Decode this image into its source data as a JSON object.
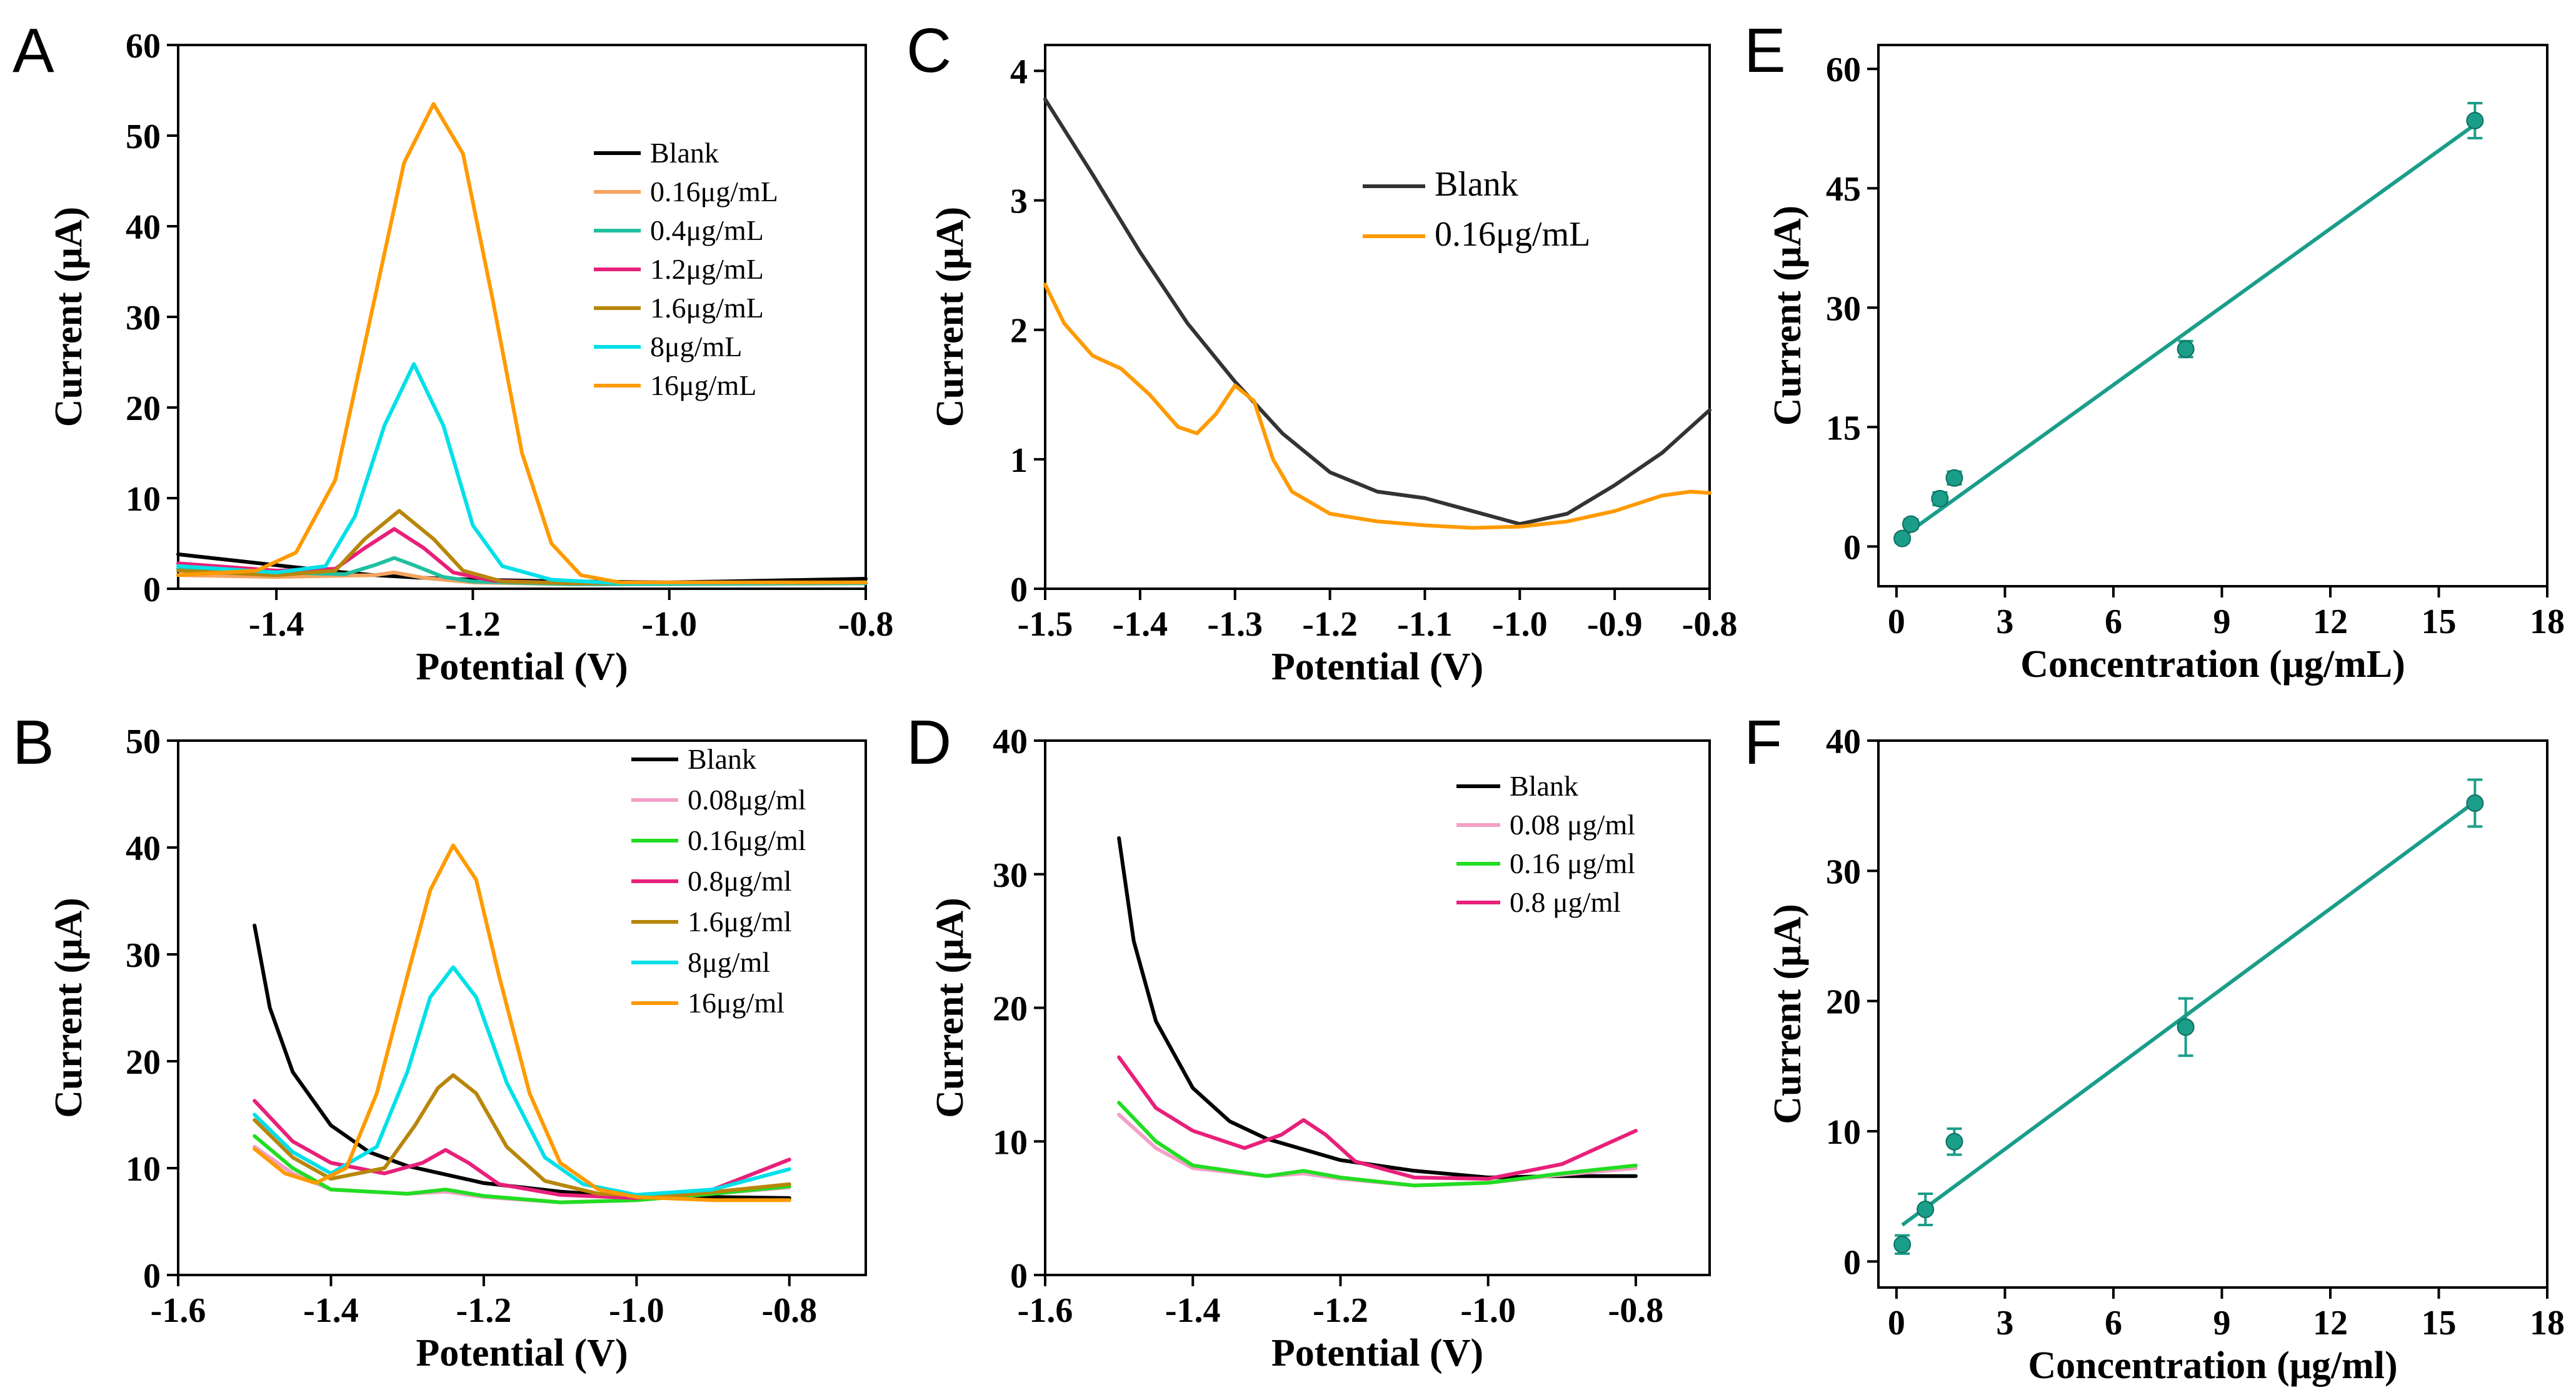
{
  "figure": {
    "panel_letters": [
      "A",
      "B",
      "C",
      "D",
      "E",
      "F"
    ]
  },
  "chart_data": [
    {
      "panel": "A",
      "type": "line",
      "title": "",
      "xlabel": "Potential (V)",
      "ylabel": "Current (μA)",
      "xlim": [
        -1.5,
        -0.8
      ],
      "ylim": [
        0,
        60
      ],
      "xticks": [
        -1.4,
        -1.2,
        -1.0,
        -0.8
      ],
      "xtick_labels": [
        "-1.4",
        "-1.2",
        "-1.0",
        "-0.8"
      ],
      "yticks": [
        0,
        10,
        20,
        30,
        40,
        50,
        60
      ],
      "ytick_labels": [
        "0",
        "10",
        "20",
        "30",
        "40",
        "50",
        "60"
      ],
      "legend_position": "top-right",
      "series": [
        {
          "name": "Blank",
          "color": "#000000",
          "x": [
            -1.5,
            -1.45,
            -1.4,
            -1.35,
            -1.3,
            -1.25,
            -1.2,
            -1.1,
            -1.0,
            -0.9,
            -0.8
          ],
          "y": [
            3.8,
            3.2,
            2.6,
            2.0,
            1.5,
            1.2,
            1.0,
            0.8,
            0.7,
            0.9,
            1.1
          ]
        },
        {
          "name": "0.16μg/mL",
          "color": "#f4a460",
          "x": [
            -1.5,
            -1.4,
            -1.3,
            -1.28,
            -1.25,
            -1.2,
            -1.1,
            -1.0,
            -0.8
          ],
          "y": [
            1.5,
            1.3,
            1.5,
            1.8,
            1.2,
            0.7,
            0.5,
            0.5,
            0.6
          ]
        },
        {
          "name": "0.4μg/mL",
          "color": "#20c0a0",
          "x": [
            -1.5,
            -1.4,
            -1.33,
            -1.3,
            -1.28,
            -1.26,
            -1.23,
            -1.2,
            -1.1,
            -0.8
          ],
          "y": [
            2.2,
            1.8,
            1.6,
            2.6,
            3.4,
            2.6,
            1.3,
            0.8,
            0.5,
            0.6
          ]
        },
        {
          "name": "1.2μg/mL",
          "color": "#e8207a",
          "x": [
            -1.5,
            -1.4,
            -1.34,
            -1.31,
            -1.28,
            -1.25,
            -1.22,
            -1.18,
            -1.1,
            -0.8
          ],
          "y": [
            2.8,
            2.0,
            2.2,
            4.5,
            6.6,
            4.5,
            1.8,
            0.9,
            0.6,
            0.7
          ]
        },
        {
          "name": "1.6μg/mL",
          "color": "#b8860b",
          "x": [
            -1.5,
            -1.4,
            -1.34,
            -1.31,
            -1.275,
            -1.24,
            -1.21,
            -1.17,
            -1.1,
            -0.8
          ],
          "y": [
            2.0,
            1.5,
            2.0,
            5.5,
            8.6,
            5.5,
            2.0,
            0.8,
            0.6,
            0.7
          ]
        },
        {
          "name": "8μg/mL",
          "color": "#00e0e8",
          "x": [
            -1.5,
            -1.4,
            -1.35,
            -1.32,
            -1.29,
            -1.26,
            -1.23,
            -1.2,
            -1.17,
            -1.12,
            -1.05,
            -0.8
          ],
          "y": [
            2.5,
            1.8,
            2.5,
            8.0,
            18.0,
            24.8,
            18.0,
            7.0,
            2.5,
            1.0,
            0.6,
            0.7
          ]
        },
        {
          "name": "16μg/mL",
          "color": "#ff9a00",
          "x": [
            -1.5,
            -1.42,
            -1.38,
            -1.34,
            -1.3,
            -1.27,
            -1.24,
            -1.21,
            -1.18,
            -1.15,
            -1.12,
            -1.09,
            -1.05,
            -0.8
          ],
          "y": [
            1.5,
            2.0,
            4.0,
            12.0,
            32.0,
            47.0,
            53.5,
            48.0,
            32.0,
            15.0,
            5.0,
            1.5,
            0.7,
            0.7
          ]
        }
      ]
    },
    {
      "panel": "B",
      "type": "line",
      "title": "",
      "xlabel": "Potential (V)",
      "ylabel": "Current (μA)",
      "xlim": [
        -1.6,
        -0.7
      ],
      "ylim": [
        0,
        50
      ],
      "xticks": [
        -1.6,
        -1.4,
        -1.2,
        -1.0,
        -0.8
      ],
      "xtick_labels": [
        "-1.6",
        "-1.4",
        "-1.2",
        "-1.0",
        "-0.8"
      ],
      "yticks": [
        0,
        10,
        20,
        30,
        40,
        50
      ],
      "ytick_labels": [
        "0",
        "10",
        "20",
        "30",
        "40",
        "50"
      ],
      "legend_position": "top-right",
      "series": [
        {
          "name": "Blank",
          "color": "#000000",
          "x": [
            -1.5,
            -1.48,
            -1.45,
            -1.4,
            -1.35,
            -1.3,
            -1.2,
            -1.1,
            -1.0,
            -0.9,
            -0.8
          ],
          "y": [
            32.7,
            25.0,
            19.0,
            14.0,
            11.5,
            10.2,
            8.6,
            7.8,
            7.3,
            7.3,
            7.2
          ]
        },
        {
          "name": "0.08μg/ml",
          "color": "#f4a0c8",
          "x": [
            -1.5,
            -1.45,
            -1.4,
            -1.3,
            -1.25,
            -1.2,
            -1.1,
            -1.0,
            -0.9,
            -0.8
          ],
          "y": [
            12.0,
            9.5,
            8.0,
            7.6,
            7.8,
            7.3,
            6.8,
            7.0,
            7.6,
            8.2
          ]
        },
        {
          "name": "0.16μg/ml",
          "color": "#22dd22",
          "x": [
            -1.5,
            -1.45,
            -1.4,
            -1.3,
            -1.25,
            -1.2,
            -1.1,
            -1.0,
            -0.9,
            -0.8
          ],
          "y": [
            13.0,
            10.0,
            8.0,
            7.6,
            8.0,
            7.4,
            6.8,
            7.0,
            7.6,
            8.3
          ]
        },
        {
          "name": "0.8μg/ml",
          "color": "#e8207a",
          "x": [
            -1.5,
            -1.45,
            -1.4,
            -1.33,
            -1.28,
            -1.25,
            -1.22,
            -1.18,
            -1.1,
            -1.0,
            -0.9,
            -0.8
          ],
          "y": [
            16.3,
            12.5,
            10.5,
            9.5,
            10.5,
            11.7,
            10.5,
            8.5,
            7.5,
            7.2,
            8.0,
            10.8
          ]
        },
        {
          "name": "1.6μg/ml",
          "color": "#b8860b",
          "x": [
            -1.5,
            -1.45,
            -1.4,
            -1.33,
            -1.29,
            -1.26,
            -1.24,
            -1.21,
            -1.17,
            -1.12,
            -1.05,
            -0.95,
            -0.8
          ],
          "y": [
            14.5,
            11.0,
            9.0,
            10.0,
            14.0,
            17.5,
            18.7,
            17.0,
            12.0,
            8.8,
            7.6,
            7.4,
            8.5
          ]
        },
        {
          "name": "8μg/ml",
          "color": "#00e0e8",
          "x": [
            -1.5,
            -1.45,
            -1.4,
            -1.34,
            -1.3,
            -1.27,
            -1.24,
            -1.21,
            -1.17,
            -1.12,
            -1.07,
            -1.0,
            -0.9,
            -0.8
          ],
          "y": [
            15.0,
            11.5,
            9.5,
            12.0,
            19.0,
            26.0,
            28.8,
            26.0,
            18.0,
            11.0,
            8.5,
            7.5,
            8.0,
            9.9
          ]
        },
        {
          "name": "16μg/ml",
          "color": "#ff9a00",
          "x": [
            -1.5,
            -1.46,
            -1.42,
            -1.38,
            -1.34,
            -1.3,
            -1.27,
            -1.24,
            -1.21,
            -1.18,
            -1.14,
            -1.1,
            -1.05,
            -1.0,
            -0.9,
            -0.8
          ],
          "y": [
            11.8,
            9.5,
            8.6,
            10.0,
            17.0,
            28.0,
            36.0,
            40.2,
            37.0,
            28.0,
            17.0,
            10.5,
            8.0,
            7.3,
            7.0,
            7.0
          ]
        }
      ]
    },
    {
      "panel": "C",
      "type": "line",
      "title": "",
      "xlabel": "Potential (V)",
      "ylabel": "Current (μA)",
      "xlim": [
        -1.5,
        -0.8
      ],
      "ylim": [
        0,
        4.2
      ],
      "xticks": [
        -1.5,
        -1.4,
        -1.3,
        -1.2,
        -1.1,
        -1.0,
        -0.9,
        -0.8
      ],
      "xtick_labels": [
        "-1.5",
        "-1.4",
        "-1.3",
        "-1.2",
        "-1.1",
        "-1.0",
        "-0.9",
        "-0.8"
      ],
      "yticks": [
        0,
        1,
        2,
        3,
        4
      ],
      "ytick_labels": [
        "0",
        "1",
        "2",
        "3",
        "4"
      ],
      "legend_position": "top-right",
      "series": [
        {
          "name": "Blank",
          "color": "#333333",
          "x": [
            -1.5,
            -1.45,
            -1.4,
            -1.35,
            -1.3,
            -1.25,
            -1.2,
            -1.15,
            -1.1,
            -1.05,
            -1.0,
            -0.95,
            -0.9,
            -0.85,
            -0.8
          ],
          "y": [
            3.78,
            3.2,
            2.6,
            2.05,
            1.6,
            1.2,
            0.9,
            0.75,
            0.7,
            0.6,
            0.5,
            0.58,
            0.8,
            1.05,
            1.38
          ]
        },
        {
          "name": "0.16μg/mL",
          "color": "#ff9a00",
          "x": [
            -1.5,
            -1.48,
            -1.45,
            -1.42,
            -1.39,
            -1.36,
            -1.34,
            -1.32,
            -1.3,
            -1.28,
            -1.26,
            -1.24,
            -1.2,
            -1.15,
            -1.1,
            -1.05,
            -1.0,
            -0.95,
            -0.9,
            -0.85,
            -0.82,
            -0.8
          ],
          "y": [
            2.35,
            2.05,
            1.8,
            1.7,
            1.5,
            1.25,
            1.2,
            1.35,
            1.57,
            1.45,
            1.0,
            0.75,
            0.58,
            0.52,
            0.49,
            0.47,
            0.48,
            0.52,
            0.6,
            0.72,
            0.75,
            0.74
          ]
        }
      ]
    },
    {
      "panel": "D",
      "type": "line",
      "title": "",
      "xlabel": "Potential (V)",
      "ylabel": "Current (μA)",
      "xlim": [
        -1.6,
        -0.7
      ],
      "ylim": [
        0,
        40
      ],
      "xticks": [
        -1.6,
        -1.4,
        -1.2,
        -1.0,
        -0.8
      ],
      "xtick_labels": [
        "-1.6",
        "-1.4",
        "-1.2",
        "-1.0",
        "-0.8"
      ],
      "yticks": [
        0,
        10,
        20,
        30,
        40
      ],
      "ytick_labels": [
        "0",
        "10",
        "20",
        "30",
        "40"
      ],
      "legend_position": "top-right",
      "series": [
        {
          "name": "Blank",
          "color": "#000000",
          "x": [
            -1.5,
            -1.48,
            -1.45,
            -1.4,
            -1.35,
            -1.3,
            -1.2,
            -1.1,
            -1.0,
            -0.9,
            -0.8
          ],
          "y": [
            32.7,
            25.0,
            19.0,
            14.0,
            11.5,
            10.2,
            8.6,
            7.8,
            7.3,
            7.4,
            7.4
          ]
        },
        {
          "name": "0.08 μg/ml",
          "color": "#f4a0c8",
          "x": [
            -1.5,
            -1.45,
            -1.4,
            -1.3,
            -1.25,
            -1.2,
            -1.1,
            -1.0,
            -0.9,
            -0.8
          ],
          "y": [
            12.0,
            9.5,
            8.0,
            7.4,
            7.6,
            7.2,
            6.7,
            6.9,
            7.5,
            8.0
          ]
        },
        {
          "name": "0.16 μg/ml",
          "color": "#22dd22",
          "x": [
            -1.5,
            -1.45,
            -1.4,
            -1.3,
            -1.25,
            -1.2,
            -1.1,
            -1.0,
            -0.9,
            -0.8
          ],
          "y": [
            12.9,
            10.0,
            8.2,
            7.4,
            7.8,
            7.3,
            6.7,
            6.9,
            7.6,
            8.2
          ]
        },
        {
          "name": "0.8 μg/ml",
          "color": "#e8207a",
          "x": [
            -1.5,
            -1.45,
            -1.4,
            -1.33,
            -1.28,
            -1.25,
            -1.22,
            -1.18,
            -1.1,
            -1.0,
            -0.9,
            -0.8
          ],
          "y": [
            16.3,
            12.5,
            10.8,
            9.5,
            10.5,
            11.6,
            10.5,
            8.5,
            7.3,
            7.2,
            8.3,
            10.8
          ]
        }
      ]
    },
    {
      "panel": "E",
      "type": "scatter",
      "title": "",
      "xlabel": "Concentration (μg/mL)",
      "ylabel": "Current (μA)",
      "xlim": [
        -0.5,
        18
      ],
      "ylim": [
        -5,
        63
      ],
      "xticks": [
        0,
        3,
        6,
        9,
        12,
        15,
        18
      ],
      "xtick_labels": [
        "0",
        "3",
        "6",
        "9",
        "12",
        "15",
        "18"
      ],
      "yticks": [
        0,
        15,
        30,
        45,
        60
      ],
      "ytick_labels": [
        "0",
        "15",
        "30",
        "45",
        "60"
      ],
      "color": "#1a9e8a",
      "points": [
        {
          "x": 0.16,
          "y": 1.0,
          "err": 0.5
        },
        {
          "x": 0.4,
          "y": 2.8,
          "err": 0.6
        },
        {
          "x": 1.2,
          "y": 6.0,
          "err": 0.8
        },
        {
          "x": 1.6,
          "y": 8.6,
          "err": 0.8
        },
        {
          "x": 8,
          "y": 24.8,
          "err": 1.0
        },
        {
          "x": 16,
          "y": 53.5,
          "err": 2.2
        }
      ],
      "fit_line": {
        "x": [
          0.16,
          16
        ],
        "y": [
          1.2,
          53.0
        ]
      }
    },
    {
      "panel": "F",
      "type": "scatter",
      "title": "",
      "xlabel": "Concentration (μg/ml)",
      "ylabel": "Current (μA)",
      "xlim": [
        -0.5,
        18
      ],
      "ylim": [
        -2,
        40
      ],
      "xticks": [
        0,
        3,
        6,
        9,
        12,
        15,
        18
      ],
      "xtick_labels": [
        "0",
        "3",
        "6",
        "9",
        "12",
        "15",
        "18"
      ],
      "yticks": [
        0,
        10,
        20,
        30,
        40
      ],
      "ytick_labels": [
        "0",
        "10",
        "20",
        "30",
        "40"
      ],
      "color": "#1a9e8a",
      "points": [
        {
          "x": 0.16,
          "y": 1.3,
          "err": 0.7
        },
        {
          "x": 0.8,
          "y": 4.0,
          "err": 1.2
        },
        {
          "x": 1.6,
          "y": 9.2,
          "err": 1.0
        },
        {
          "x": 8,
          "y": 18.0,
          "err": 2.2
        },
        {
          "x": 16,
          "y": 35.2,
          "err": 1.8
        }
      ],
      "fit_line": {
        "x": [
          0.16,
          16
        ],
        "y": [
          2.8,
          35.3
        ]
      }
    }
  ]
}
